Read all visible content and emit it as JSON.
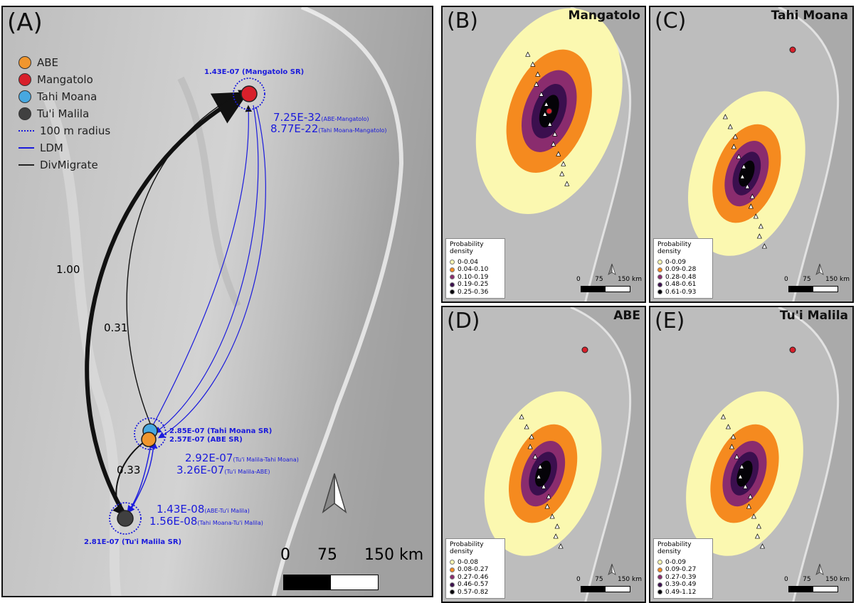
{
  "panel_a": {
    "label": "(A)",
    "legend": [
      {
        "label": "ABE",
        "color": "#f0962e"
      },
      {
        "label": "Mangatolo",
        "color": "#d8202b"
      },
      {
        "label": "Tahi Moana",
        "color": "#47a8e0"
      },
      {
        "label": "Tu'i Malila",
        "color": "#404040"
      }
    ],
    "legend_lines": [
      {
        "label": "100 m radius",
        "style": "dotted",
        "color": "#1a1adc"
      },
      {
        "label": "LDM",
        "style": "solid",
        "color": "#1a1adc"
      },
      {
        "label": "DivMigrate",
        "style": "solid",
        "color": "#222222"
      }
    ],
    "flow_labels": {
      "tm_to_mg": "1.00",
      "abe_to_mg": "0.31",
      "abe_to_tm": "0.33"
    },
    "sr_labels": {
      "mangatolo": "1.43E-07 (Mangatolo SR)",
      "tahi_moana": "2.85E-07 (Tahi Moana SR)",
      "abe": "2.57E-07 (ABE SR)",
      "tui_malila": "2.81E-07 (Tu'i Malila SR)"
    },
    "ldm_labels": [
      {
        "value": "7.25E-32",
        "sub": "(ABE-Mangatolo)"
      },
      {
        "value": "8.77E-22",
        "sub": "(Tahi Moana-Mangatolo)"
      },
      {
        "value": "2.92E-07",
        "sub": "(Tu'i Malila-Tahi Moana)"
      },
      {
        "value": "3.26E-07",
        "sub": "(Tu'i Malila-ABE)"
      },
      {
        "value": "1.43E-08",
        "sub": "(ABE-Tu'i Malila)"
      },
      {
        "value": "1.56E-08",
        "sub": "(Tahi Moana-Tu'i Malila)"
      }
    ],
    "scale": {
      "l0": "0",
      "l1": "75",
      "l2": "150 km"
    }
  },
  "panels": [
    {
      "label": "(B)",
      "title": "Mangatolo",
      "legend_title": "Probability density",
      "classes": [
        "0-0.04",
        "0.04-0.10",
        "0.10-0.19",
        "0.19-0.25",
        "0.25-0.36"
      ]
    },
    {
      "label": "(C)",
      "title": "Tahi Moana",
      "legend_title": "Probability density",
      "classes": [
        "0-0.09",
        "0.09-0.28",
        "0.28-0.48",
        "0.48-0.61",
        "0.61-0.93"
      ]
    },
    {
      "label": "(D)",
      "title": "ABE",
      "legend_title": "Probability density",
      "classes": [
        "0-0.08",
        "0.08-0.27",
        "0.27-0.46",
        "0.46-0.57",
        "0.57-0.82"
      ]
    },
    {
      "label": "(E)",
      "title": "Tu'i Malila",
      "legend_title": "Probability density",
      "classes": [
        "0-0.09",
        "0.09-0.27",
        "0.27-0.39",
        "0.39-0.49",
        "0.49-1.12"
      ]
    }
  ],
  "small_scale": {
    "l0": "0",
    "l1": "75",
    "l2": "150 km"
  },
  "density_colors": [
    "#fbf8b0",
    "#f58a1f",
    "#8a2c6e",
    "#3b0f4e",
    "#050308"
  ]
}
